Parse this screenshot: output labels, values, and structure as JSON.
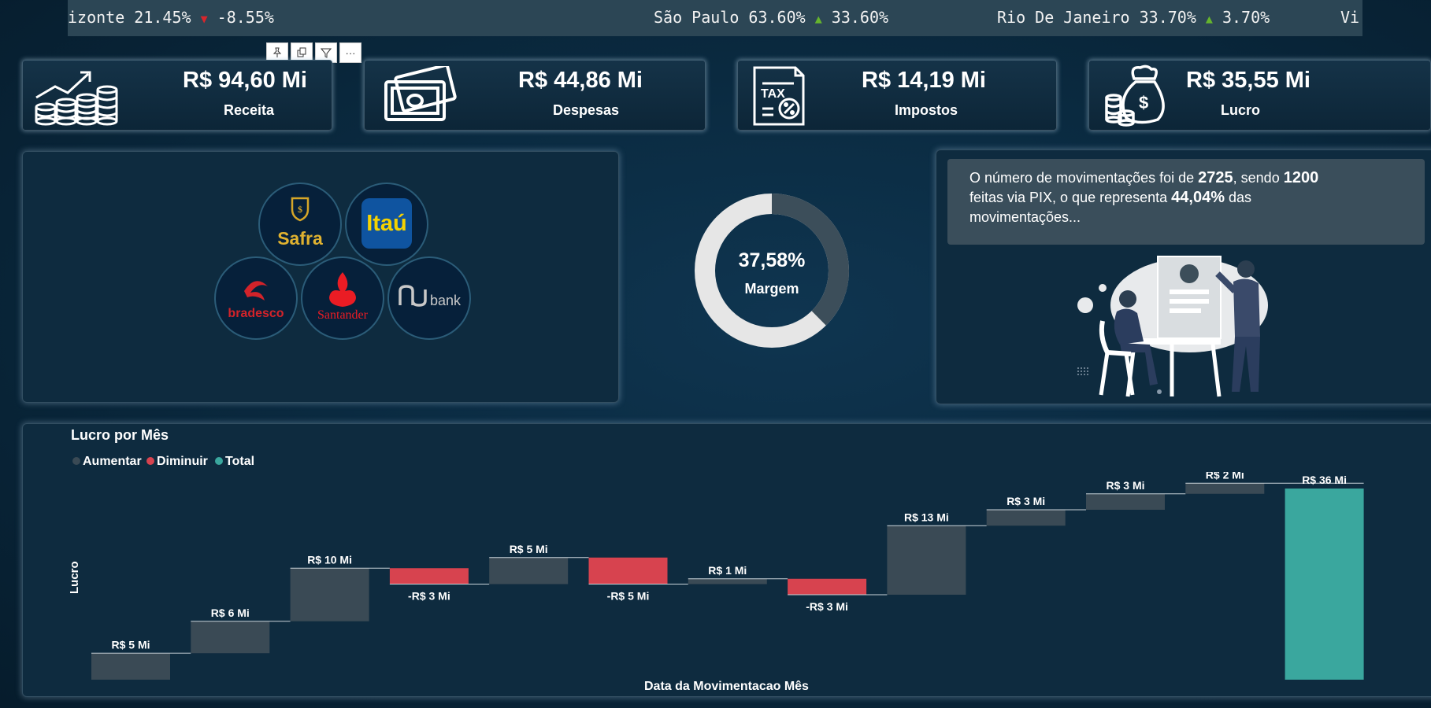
{
  "ticker": {
    "items": [
      {
        "name": "izonte",
        "pct": "21.45%",
        "dir": "down",
        "change": "-8.55%"
      },
      {
        "name": "São Paulo",
        "pct": "63.60%",
        "dir": "up",
        "change": "33.60%"
      },
      {
        "name": "Rio De Janeiro",
        "pct": "33.70%",
        "dir": "up",
        "change": "3.70%"
      },
      {
        "name": "Vi",
        "pct": "",
        "dir": "",
        "change": ""
      }
    ],
    "up_glyph": "▲",
    "down_glyph": "▼"
  },
  "toolbar": {
    "pin": "📌",
    "copy": "⧉",
    "filter": "⛉",
    "more": "···"
  },
  "kpis": [
    {
      "value": "R$ 94,60 Mi",
      "label": "Receita",
      "icon": "growth-coins-icon"
    },
    {
      "value": "R$ 44,86 Mi",
      "label": "Despesas",
      "icon": "banknotes-icon"
    },
    {
      "value": "R$ 14,19 Mi",
      "label": "Impostos",
      "icon": "tax-document-icon"
    },
    {
      "value": "R$ 35,55 Mi",
      "label": "Lucro",
      "icon": "money-bag-icon"
    }
  ],
  "banks": {
    "safra": "Safra",
    "itau": "Itaú",
    "bradesco": "bradesco",
    "santander": "Santander",
    "nubank": "bank"
  },
  "margin": {
    "value": "37,58%",
    "label": "Margem",
    "fraction": 0.3758
  },
  "info": {
    "t1": "O número de movimentações foi de ",
    "count": "2725",
    "t2": ", sendo ",
    "pix": "1200",
    "t3": "feitas via PIX, o que representa ",
    "pct": "44,04%",
    "t4": " das",
    "t5": "movimentações..."
  },
  "chart_data": {
    "type": "waterfall",
    "title": "Lucro por Mês",
    "xlabel": "Data da Movimentacao Mês",
    "ylabel": "Lucro",
    "legend": [
      {
        "name": "Aumentar",
        "color": "#3a4a55"
      },
      {
        "name": "Diminuir",
        "color": "#d7434f"
      },
      {
        "name": "Total",
        "color": "#3aa79e"
      }
    ],
    "steps": [
      {
        "kind": "increase",
        "value": 5,
        "label": "R$ 5 Mi"
      },
      {
        "kind": "increase",
        "value": 6,
        "label": "R$ 6 Mi"
      },
      {
        "kind": "increase",
        "value": 10,
        "label": "R$ 10 Mi"
      },
      {
        "kind": "decrease",
        "value": -3,
        "label": "-R$ 3 Mi"
      },
      {
        "kind": "increase",
        "value": 5,
        "label": "R$ 5 Mi"
      },
      {
        "kind": "decrease",
        "value": -5,
        "label": "-R$ 5 Mi"
      },
      {
        "kind": "increase",
        "value": 1,
        "label": "R$ 1 Mi"
      },
      {
        "kind": "decrease",
        "value": -3,
        "label": "-R$ 3 Mi"
      },
      {
        "kind": "increase",
        "value": 13,
        "label": "R$ 13 Mi"
      },
      {
        "kind": "increase",
        "value": 3,
        "label": "R$ 3 Mi"
      },
      {
        "kind": "increase",
        "value": 3,
        "label": "R$ 3 Mi"
      },
      {
        "kind": "increase",
        "value": 2,
        "label": "R$ 2 Mi"
      },
      {
        "kind": "total",
        "value": 36,
        "label": "R$ 36 Mi"
      }
    ]
  }
}
